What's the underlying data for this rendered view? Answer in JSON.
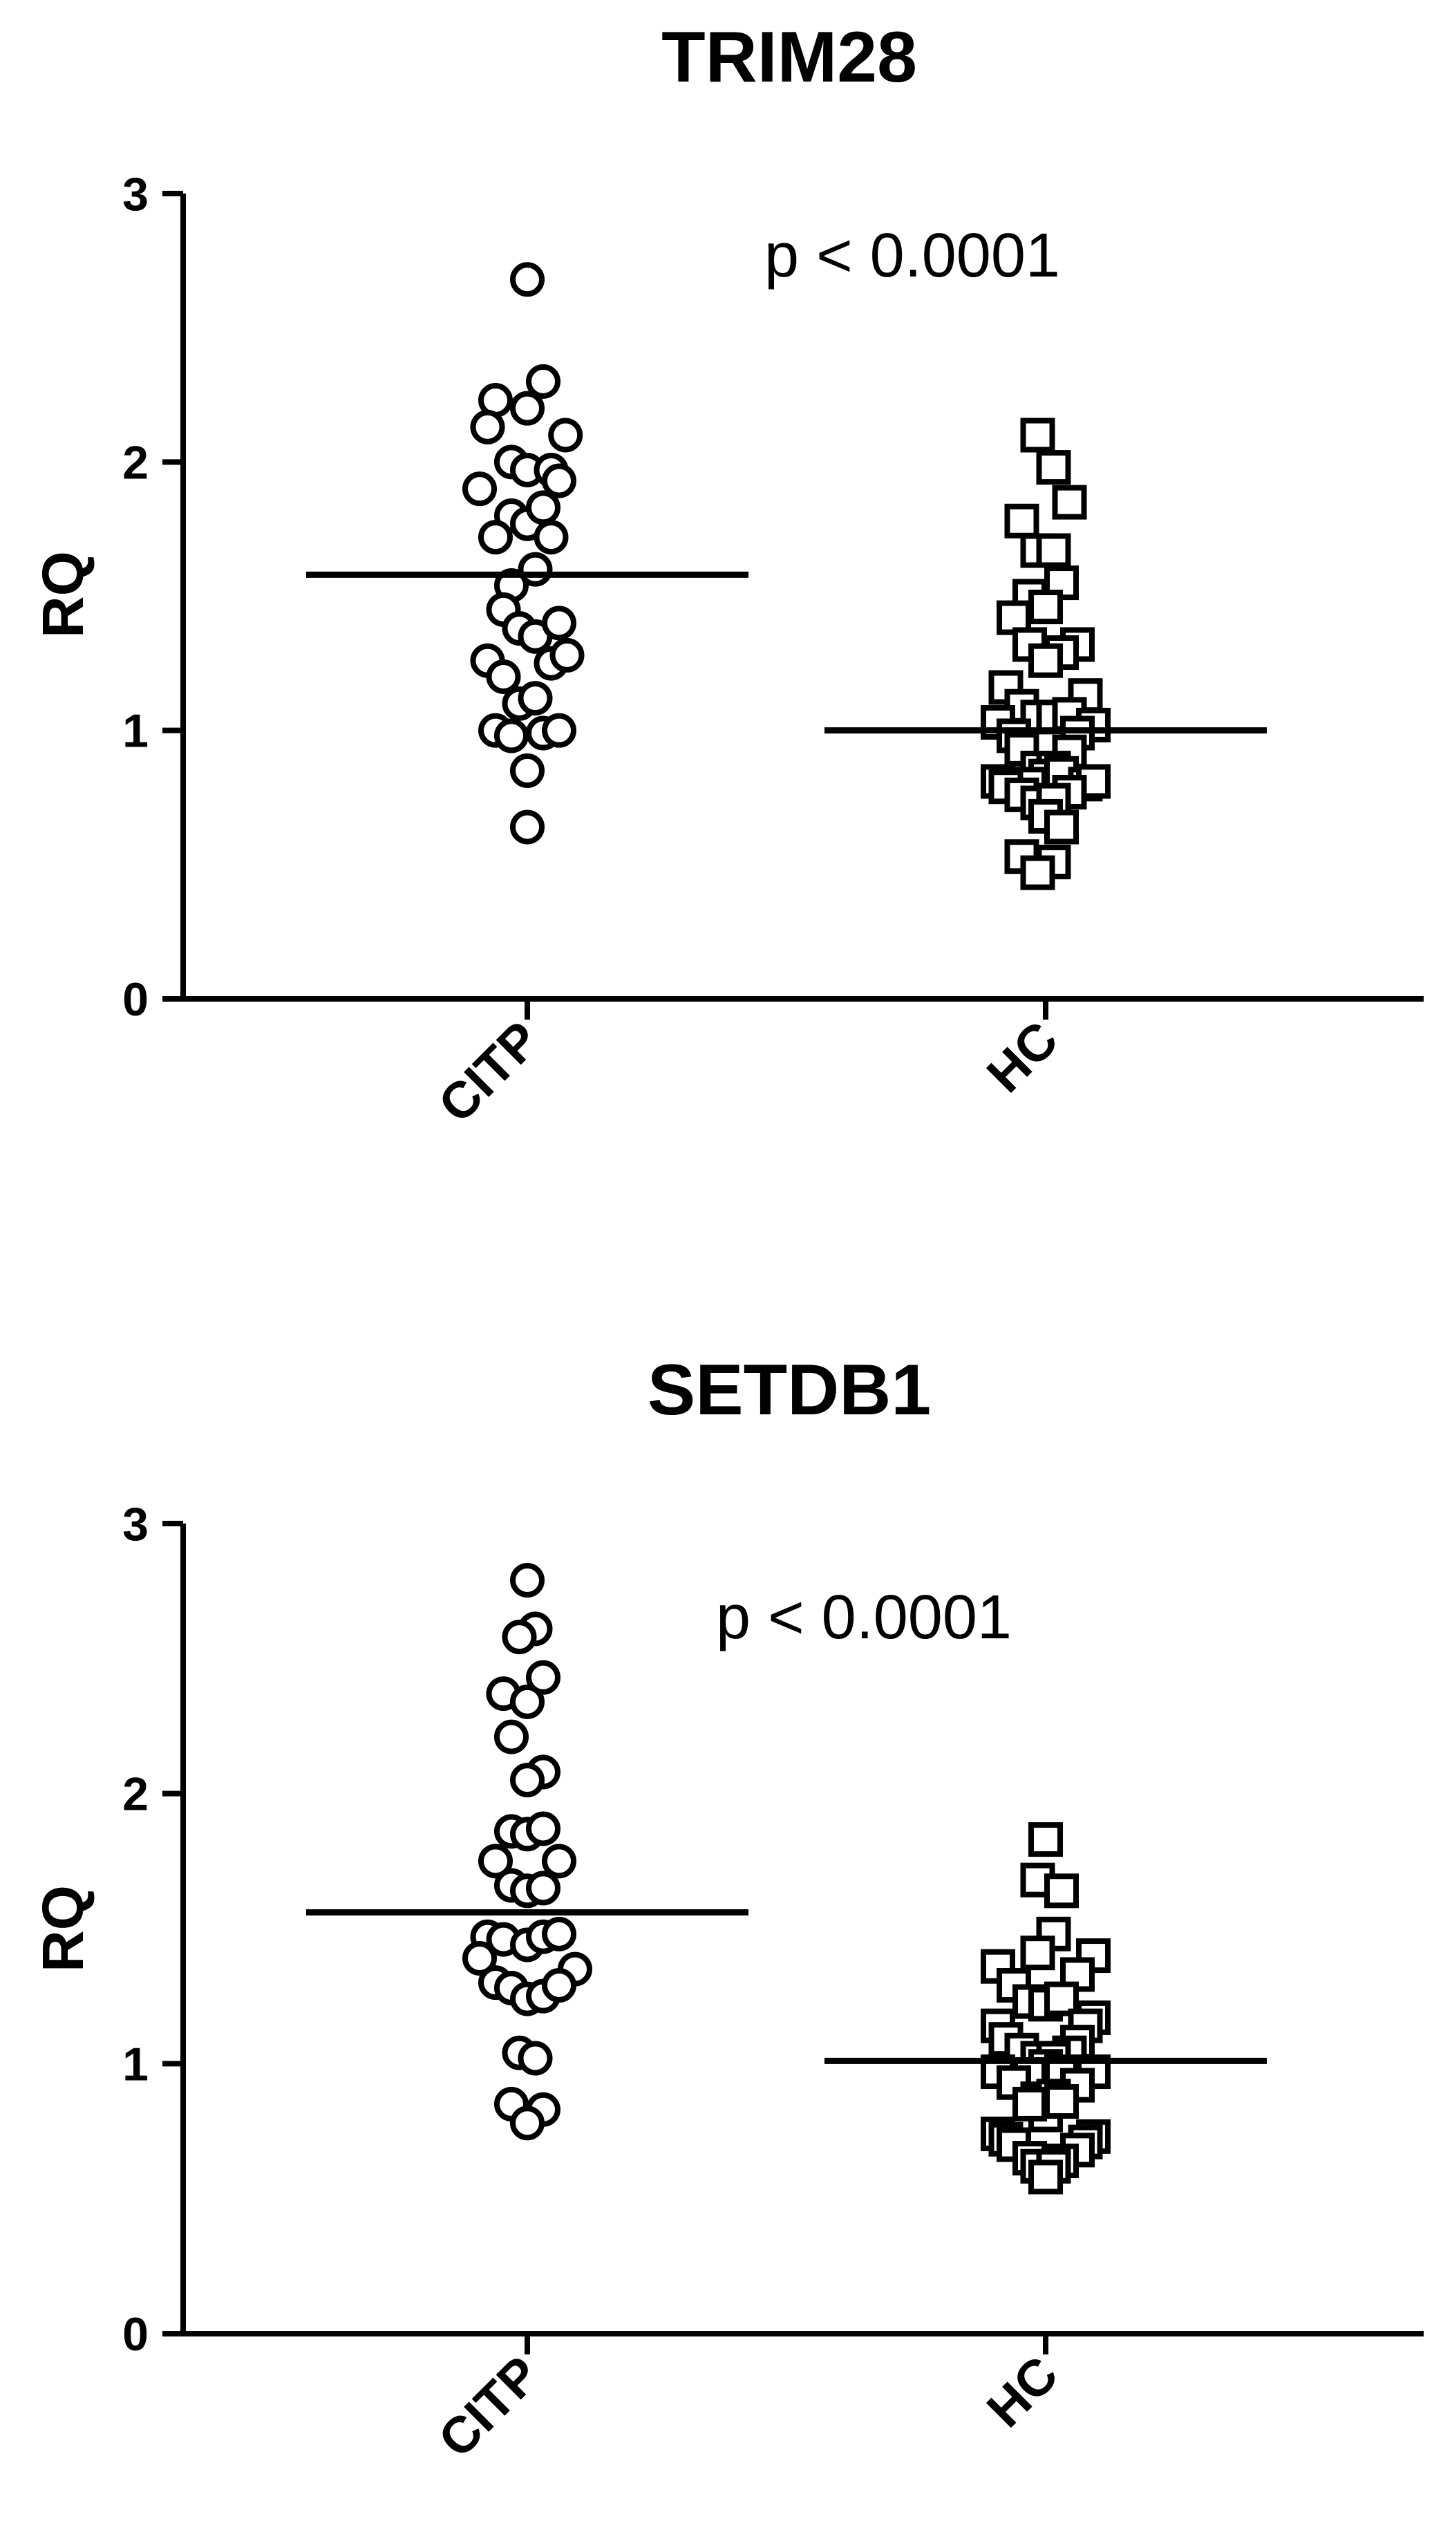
{
  "chart_data": [
    {
      "type": "scatter",
      "title": "TRIM28",
      "ylabel": "RQ",
      "ylim": [
        0,
        3
      ],
      "yticks": [
        "0",
        "1",
        "2",
        "3"
      ],
      "categories": [
        "CITP",
        "HC"
      ],
      "annotation": "p < 0.0001",
      "grid": false,
      "series": [
        {
          "name": "CITP",
          "marker": "circle",
          "mean": 1.58,
          "points": [
            {
              "x": 0.0,
              "y": 2.68
            },
            {
              "x": -0.2,
              "y": 2.23
            },
            {
              "x": 0.0,
              "y": 2.2
            },
            {
              "x": 0.1,
              "y": 2.3
            },
            {
              "x": -0.25,
              "y": 2.13
            },
            {
              "x": 0.24,
              "y": 2.1
            },
            {
              "x": -0.1,
              "y": 2.0
            },
            {
              "x": 0.0,
              "y": 1.97
            },
            {
              "x": 0.15,
              "y": 1.97
            },
            {
              "x": -0.3,
              "y": 1.9
            },
            {
              "x": 0.2,
              "y": 1.93
            },
            {
              "x": -0.1,
              "y": 1.8
            },
            {
              "x": 0.0,
              "y": 1.77
            },
            {
              "x": 0.1,
              "y": 1.83
            },
            {
              "x": -0.2,
              "y": 1.72
            },
            {
              "x": 0.15,
              "y": 1.72
            },
            {
              "x": 0.05,
              "y": 1.6
            },
            {
              "x": -0.1,
              "y": 1.54
            },
            {
              "x": -0.15,
              "y": 1.45
            },
            {
              "x": -0.05,
              "y": 1.38
            },
            {
              "x": 0.05,
              "y": 1.35
            },
            {
              "x": 0.2,
              "y": 1.4
            },
            {
              "x": -0.25,
              "y": 1.26
            },
            {
              "x": 0.15,
              "y": 1.25
            },
            {
              "x": 0.25,
              "y": 1.28
            },
            {
              "x": -0.15,
              "y": 1.2
            },
            {
              "x": -0.05,
              "y": 1.1
            },
            {
              "x": 0.05,
              "y": 1.12
            },
            {
              "x": -0.2,
              "y": 1.0
            },
            {
              "x": -0.1,
              "y": 0.98
            },
            {
              "x": 0.1,
              "y": 0.99
            },
            {
              "x": 0.2,
              "y": 1.0
            },
            {
              "x": 0.0,
              "y": 0.85
            },
            {
              "x": 0.0,
              "y": 0.64
            }
          ]
        },
        {
          "name": "HC",
          "marker": "square",
          "mean": 1.0,
          "points": [
            {
              "x": -0.05,
              "y": 2.1
            },
            {
              "x": 0.05,
              "y": 1.98
            },
            {
              "x": 0.15,
              "y": 1.85
            },
            {
              "x": -0.15,
              "y": 1.78
            },
            {
              "x": -0.05,
              "y": 1.67
            },
            {
              "x": 0.05,
              "y": 1.67
            },
            {
              "x": 0.1,
              "y": 1.55
            },
            {
              "x": -0.1,
              "y": 1.5
            },
            {
              "x": 0.0,
              "y": 1.46
            },
            {
              "x": -0.2,
              "y": 1.42
            },
            {
              "x": -0.1,
              "y": 1.32
            },
            {
              "x": 0.2,
              "y": 1.32
            },
            {
              "x": 0.1,
              "y": 1.29
            },
            {
              "x": 0.0,
              "y": 1.26
            },
            {
              "x": -0.25,
              "y": 1.16
            },
            {
              "x": 0.25,
              "y": 1.13
            },
            {
              "x": -0.15,
              "y": 1.09
            },
            {
              "x": -0.05,
              "y": 1.05
            },
            {
              "x": 0.05,
              "y": 1.05
            },
            {
              "x": 0.15,
              "y": 1.06
            },
            {
              "x": -0.3,
              "y": 1.03
            },
            {
              "x": 0.3,
              "y": 1.02
            },
            {
              "x": -0.2,
              "y": 0.98
            },
            {
              "x": 0.2,
              "y": 0.99
            },
            {
              "x": -0.15,
              "y": 0.93
            },
            {
              "x": 0.15,
              "y": 0.92
            },
            {
              "x": -0.05,
              "y": 0.86
            },
            {
              "x": 0.05,
              "y": 0.86
            },
            {
              "x": 0.0,
              "y": 0.83
            },
            {
              "x": 0.1,
              "y": 0.84
            },
            {
              "x": -0.1,
              "y": 0.8
            },
            {
              "x": -0.3,
              "y": 0.81
            },
            {
              "x": -0.25,
              "y": 0.79
            },
            {
              "x": 0.25,
              "y": 0.8
            },
            {
              "x": 0.3,
              "y": 0.81
            },
            {
              "x": -0.15,
              "y": 0.76
            },
            {
              "x": 0.15,
              "y": 0.77
            },
            {
              "x": -0.05,
              "y": 0.73
            },
            {
              "x": 0.05,
              "y": 0.74
            },
            {
              "x": 0.0,
              "y": 0.68
            },
            {
              "x": 0.1,
              "y": 0.64
            },
            {
              "x": -0.15,
              "y": 0.53
            },
            {
              "x": 0.05,
              "y": 0.51
            },
            {
              "x": -0.05,
              "y": 0.47
            }
          ]
        }
      ]
    },
    {
      "type": "scatter",
      "title": "SETDB1",
      "ylabel": "RQ",
      "ylim": [
        0,
        3
      ],
      "yticks": [
        "0",
        "1",
        "2",
        "3"
      ],
      "categories": [
        "CITP",
        "HC"
      ],
      "annotation": "p < 0.0001",
      "grid": false,
      "series": [
        {
          "name": "CITP",
          "marker": "circle",
          "mean": 1.56,
          "points": [
            {
              "x": 0.0,
              "y": 2.79
            },
            {
              "x": 0.05,
              "y": 2.61
            },
            {
              "x": -0.05,
              "y": 2.58
            },
            {
              "x": 0.1,
              "y": 2.43
            },
            {
              "x": -0.15,
              "y": 2.37
            },
            {
              "x": 0.0,
              "y": 2.34
            },
            {
              "x": -0.1,
              "y": 2.21
            },
            {
              "x": 0.1,
              "y": 2.08
            },
            {
              "x": 0.0,
              "y": 2.05
            },
            {
              "x": -0.1,
              "y": 1.86
            },
            {
              "x": 0.0,
              "y": 1.85
            },
            {
              "x": 0.1,
              "y": 1.87
            },
            {
              "x": -0.2,
              "y": 1.75
            },
            {
              "x": 0.2,
              "y": 1.75
            },
            {
              "x": -0.1,
              "y": 1.66
            },
            {
              "x": 0.0,
              "y": 1.64
            },
            {
              "x": 0.1,
              "y": 1.65
            },
            {
              "x": -0.25,
              "y": 1.47
            },
            {
              "x": -0.15,
              "y": 1.46
            },
            {
              "x": 0.0,
              "y": 1.44
            },
            {
              "x": 0.1,
              "y": 1.47
            },
            {
              "x": 0.2,
              "y": 1.48
            },
            {
              "x": -0.3,
              "y": 1.39
            },
            {
              "x": 0.3,
              "y": 1.35
            },
            {
              "x": -0.2,
              "y": 1.3
            },
            {
              "x": -0.1,
              "y": 1.28
            },
            {
              "x": 0.0,
              "y": 1.24
            },
            {
              "x": 0.1,
              "y": 1.25
            },
            {
              "x": 0.2,
              "y": 1.29
            },
            {
              "x": -0.05,
              "y": 1.04
            },
            {
              "x": 0.05,
              "y": 1.02
            },
            {
              "x": -0.1,
              "y": 0.85
            },
            {
              "x": 0.1,
              "y": 0.83
            },
            {
              "x": 0.0,
              "y": 0.78
            }
          ]
        },
        {
          "name": "HC",
          "marker": "square",
          "mean": 1.01,
          "points": [
            {
              "x": 0.0,
              "y": 1.83
            },
            {
              "x": -0.05,
              "y": 1.68
            },
            {
              "x": 0.1,
              "y": 1.64
            },
            {
              "x": 0.05,
              "y": 1.48
            },
            {
              "x": -0.05,
              "y": 1.41
            },
            {
              "x": 0.3,
              "y": 1.4
            },
            {
              "x": -0.3,
              "y": 1.36
            },
            {
              "x": 0.2,
              "y": 1.33
            },
            {
              "x": -0.2,
              "y": 1.29
            },
            {
              "x": -0.1,
              "y": 1.23
            },
            {
              "x": 0.0,
              "y": 1.22
            },
            {
              "x": 0.1,
              "y": 1.24
            },
            {
              "x": 0.3,
              "y": 1.17
            },
            {
              "x": 0.25,
              "y": 1.14
            },
            {
              "x": -0.3,
              "y": 1.14
            },
            {
              "x": -0.25,
              "y": 1.09
            },
            {
              "x": 0.2,
              "y": 1.08
            },
            {
              "x": -0.15,
              "y": 1.05
            },
            {
              "x": 0.15,
              "y": 1.04
            },
            {
              "x": -0.05,
              "y": 1.02
            },
            {
              "x": 0.05,
              "y": 1.02
            },
            {
              "x": 0.0,
              "y": 0.99
            },
            {
              "x": -0.3,
              "y": 0.97
            },
            {
              "x": 0.3,
              "y": 0.97
            },
            {
              "x": -0.1,
              "y": 0.96
            },
            {
              "x": 0.1,
              "y": 0.97
            },
            {
              "x": -0.2,
              "y": 0.93
            },
            {
              "x": 0.2,
              "y": 0.92
            },
            {
              "x": -0.05,
              "y": 0.87
            },
            {
              "x": 0.05,
              "y": 0.88
            },
            {
              "x": 0.0,
              "y": 0.81
            },
            {
              "x": -0.1,
              "y": 0.85
            },
            {
              "x": 0.1,
              "y": 0.86
            },
            {
              "x": -0.3,
              "y": 0.74
            },
            {
              "x": -0.25,
              "y": 0.72
            },
            {
              "x": 0.3,
              "y": 0.73
            },
            {
              "x": 0.25,
              "y": 0.71
            },
            {
              "x": -0.2,
              "y": 0.7
            },
            {
              "x": 0.2,
              "y": 0.68
            },
            {
              "x": -0.1,
              "y": 0.65
            },
            {
              "x": 0.1,
              "y": 0.64
            },
            {
              "x": -0.05,
              "y": 0.62
            },
            {
              "x": 0.05,
              "y": 0.62
            },
            {
              "x": 0.0,
              "y": 0.58
            }
          ]
        }
      ]
    }
  ]
}
